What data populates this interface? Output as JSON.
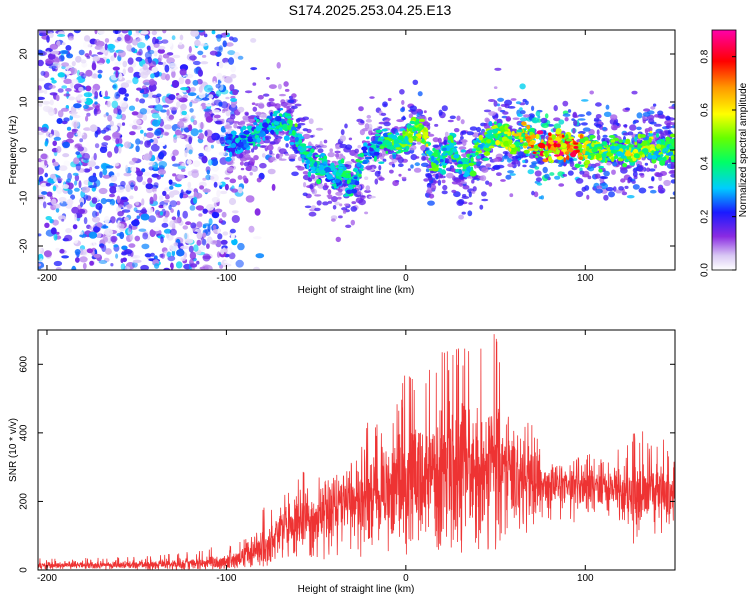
{
  "figure_title": "S174.2025.253.04.25.E13",
  "chart_data": [
    {
      "type": "heatmap",
      "title": "",
      "xlabel": "Height of straight line (km)",
      "ylabel": "Frequency (Hz)",
      "xlim": [
        -205,
        150
      ],
      "ylim": [
        -25,
        25
      ],
      "xticks": [
        -200,
        -100,
        0,
        100
      ],
      "xtick_labels": [
        "-200",
        "-100",
        "0",
        "100"
      ],
      "yticks": [
        -20,
        -10,
        0,
        10,
        20
      ],
      "ytick_labels": [
        "-20",
        "-10",
        "0",
        "10",
        "20"
      ],
      "colorbar": {
        "label": "Normalized spectral amplitude",
        "range": [
          0,
          0.9
        ],
        "ticks": [
          0,
          0.2,
          0.4,
          0.6,
          0.8
        ],
        "tick_labels": [
          "0.0",
          "0.2",
          "0.4",
          "0.6",
          "0.8"
        ],
        "colormap": "rainbow (white→violet→blue→cyan→green→yellow→orange→red→magenta)"
      },
      "ridge": {
        "x": [
          -100,
          -90,
          -80,
          -70,
          -65,
          -60,
          -55,
          -50,
          -45,
          -40,
          -35,
          -30,
          -25,
          -20,
          -15,
          -10,
          -5,
          0,
          5,
          10,
          15,
          20,
          25,
          30,
          35,
          40,
          45,
          50,
          55,
          60,
          65,
          70,
          75,
          80,
          85,
          90,
          95,
          100,
          105,
          110,
          115,
          120,
          125,
          130,
          135,
          140,
          145,
          150
        ],
        "freq_hz": [
          1,
          2,
          4,
          6,
          5,
          2,
          -2,
          -4,
          -3,
          -7,
          -4,
          -8,
          -3,
          0,
          1,
          2,
          1,
          2,
          5,
          3,
          -3,
          -2,
          1,
          -3,
          -4,
          0,
          2,
          4,
          3,
          1,
          3,
          2,
          1,
          0,
          1,
          1,
          0,
          0,
          0,
          -1,
          0,
          0,
          -1,
          0,
          1,
          0,
          0,
          0
        ],
        "amplitude": [
          0.3,
          0.35,
          0.35,
          0.4,
          0.45,
          0.45,
          0.4,
          0.4,
          0.4,
          0.35,
          0.4,
          0.4,
          0.4,
          0.3,
          0.4,
          0.45,
          0.5,
          0.5,
          0.55,
          0.6,
          0.5,
          0.45,
          0.45,
          0.45,
          0.45,
          0.5,
          0.5,
          0.55,
          0.55,
          0.6,
          0.65,
          0.7,
          0.8,
          0.85,
          0.85,
          0.8,
          0.75,
          0.6,
          0.55,
          0.55,
          0.55,
          0.5,
          0.6,
          0.6,
          0.55,
          0.5,
          0.5,
          0.5
        ]
      },
      "noise_region_km": [
        -205,
        -95
      ]
    },
    {
      "type": "line",
      "title": "",
      "xlabel": "Height of straight line (km)",
      "ylabel": "SNR (10 * v/v)",
      "xlim": [
        -205,
        150
      ],
      "ylim": [
        0,
        700
      ],
      "xticks": [
        -200,
        -100,
        0,
        100
      ],
      "xtick_labels": [
        "-200",
        "-100",
        "0",
        "100"
      ],
      "yticks": [
        0,
        200,
        400,
        600
      ],
      "ytick_labels": [
        "0",
        "200",
        "400",
        "600"
      ],
      "color": "#ee3333",
      "envelope": {
        "x": [
          -205,
          -180,
          -150,
          -120,
          -100,
          -90,
          -80,
          -70,
          -60,
          -50,
          -40,
          -30,
          -20,
          -10,
          0,
          10,
          20,
          30,
          40,
          50,
          60,
          70,
          80,
          90,
          100,
          110,
          120,
          130,
          140,
          150
        ],
        "mean": [
          15,
          15,
          15,
          18,
          25,
          40,
          70,
          110,
          140,
          160,
          180,
          200,
          220,
          230,
          250,
          270,
          290,
          300,
          300,
          290,
          270,
          260,
          255,
          245,
          240,
          235,
          230,
          225,
          225,
          230
        ],
        "max": [
          35,
          35,
          40,
          55,
          75,
          95,
          180,
          220,
          300,
          310,
          270,
          320,
          450,
          410,
          580,
          630,
          650,
          670,
          670,
          700,
          500,
          440,
          310,
          300,
          350,
          320,
          370,
          430,
          360,
          450
        ],
        "min": [
          2,
          2,
          2,
          2,
          3,
          5,
          10,
          20,
          30,
          20,
          40,
          40,
          30,
          40,
          40,
          50,
          60,
          30,
          60,
          60,
          80,
          100,
          140,
          130,
          130,
          120,
          140,
          40,
          100,
          120
        ]
      }
    }
  ]
}
